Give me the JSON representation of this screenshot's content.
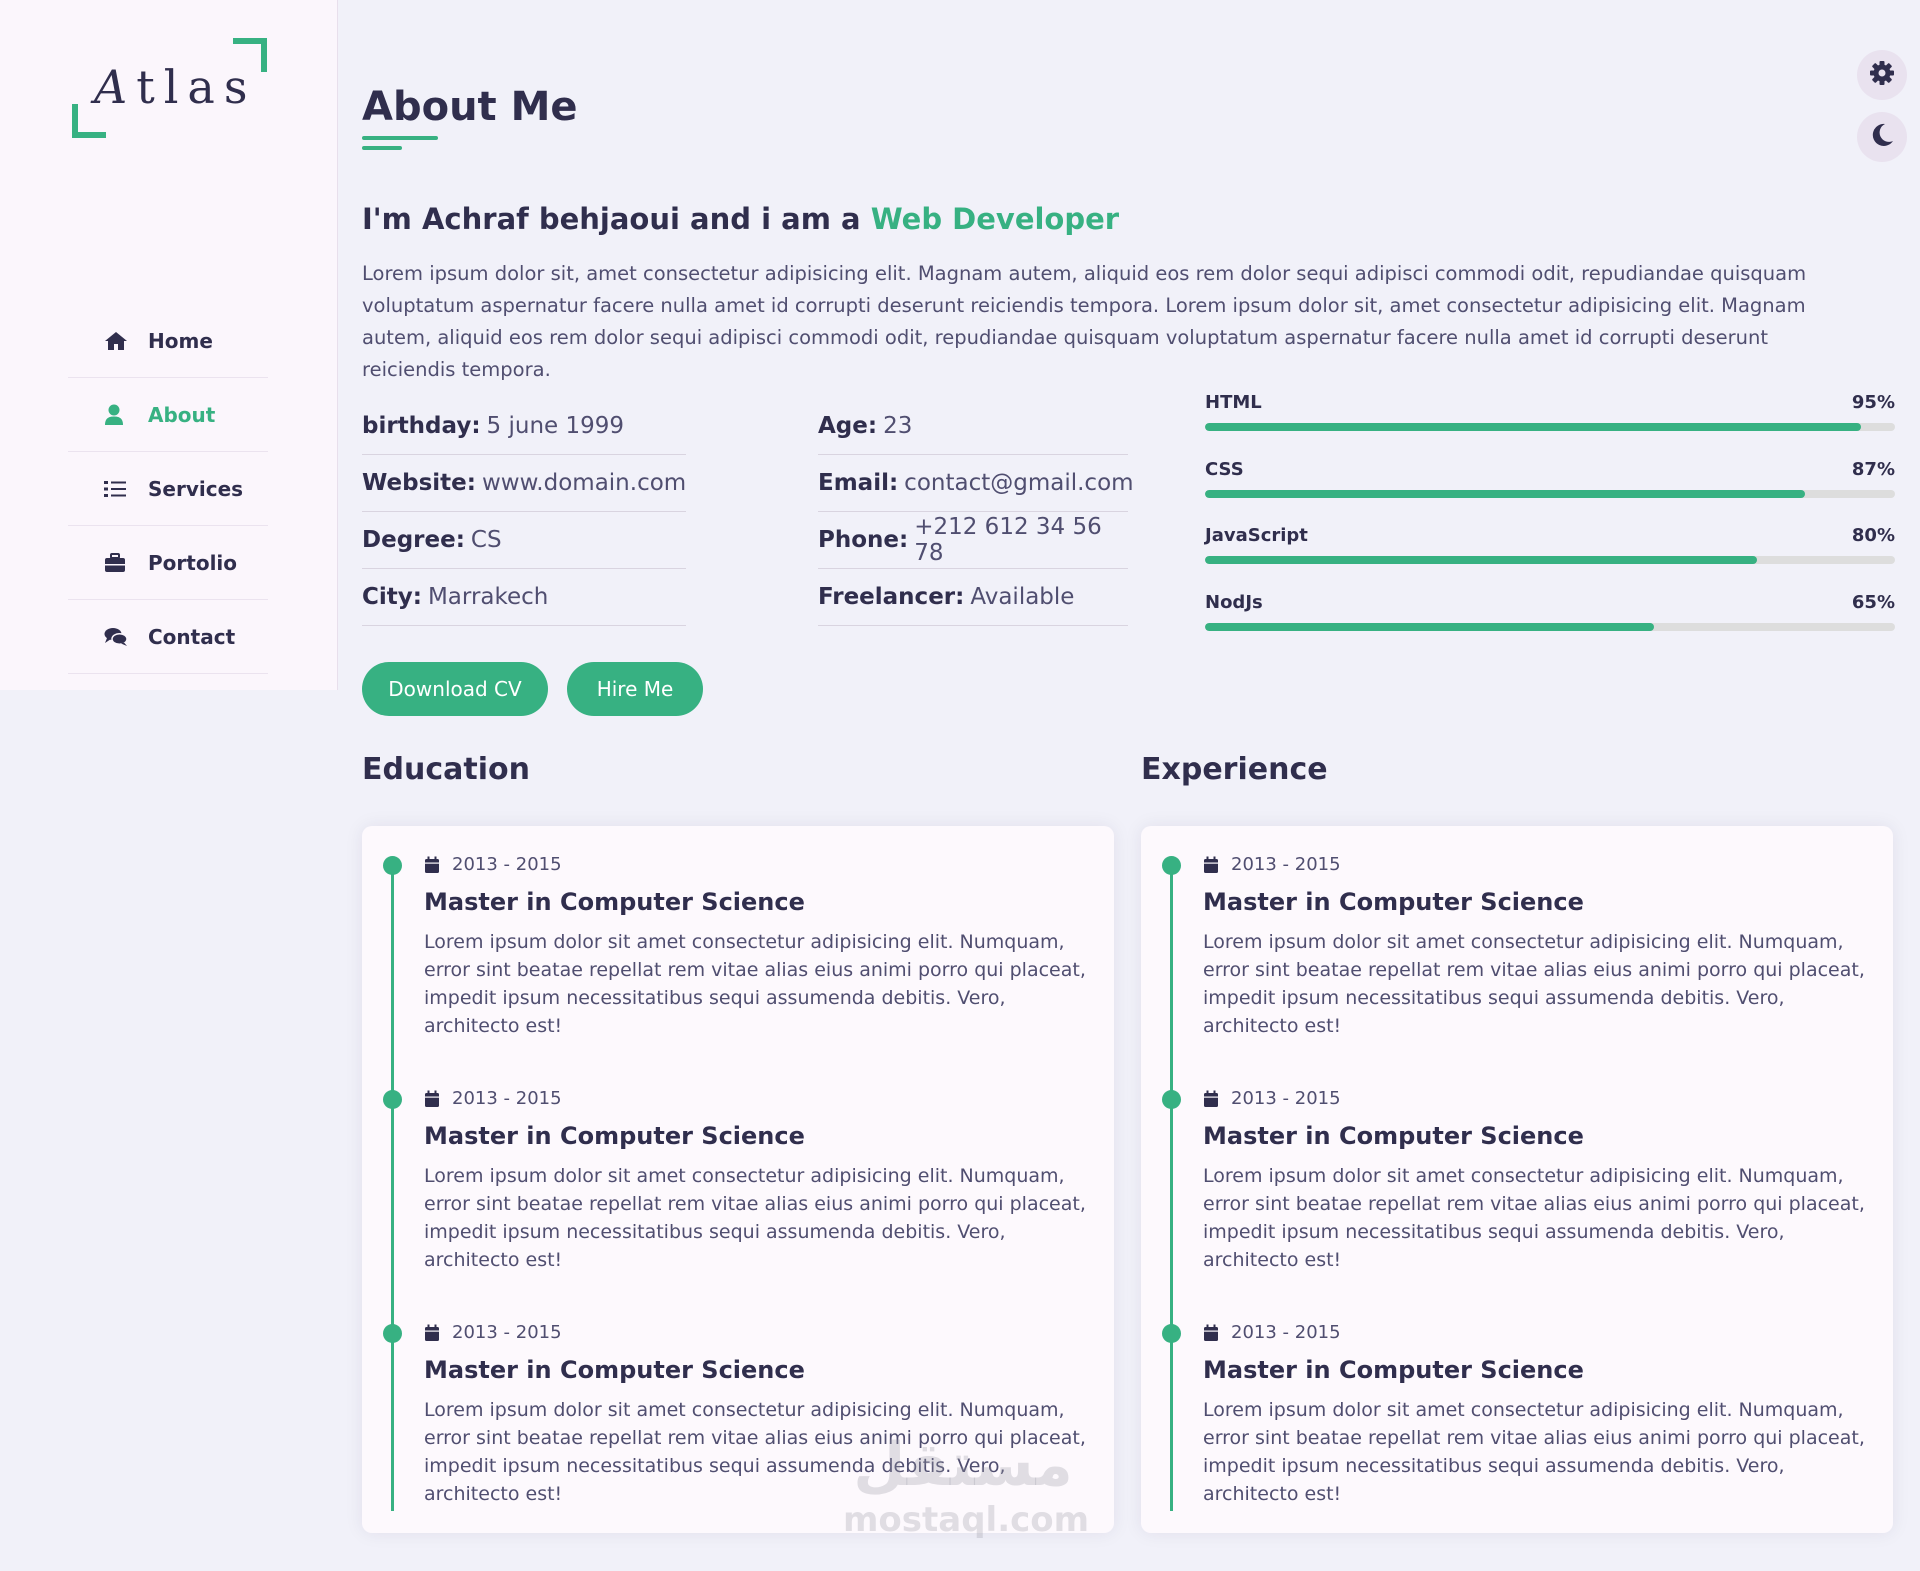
{
  "logo": {
    "first": "A",
    "rest": "tlas"
  },
  "nav": [
    {
      "label": "Home",
      "icon": "home-icon",
      "active": false
    },
    {
      "label": "About",
      "icon": "user-icon",
      "active": true
    },
    {
      "label": "Services",
      "icon": "list-icon",
      "active": false
    },
    {
      "label": "Portolio",
      "icon": "briefcase-icon",
      "active": false
    },
    {
      "label": "Contact",
      "icon": "comments-icon",
      "active": false
    }
  ],
  "about": {
    "title": "About Me",
    "intro_prefix": "I'm Achraf behjaoui and i am a ",
    "intro_role": "Web Developer",
    "description": "Lorem ipsum dolor sit, amet consectetur adipisicing elit. Magnam autem, aliquid eos rem dolor sequi adipisci commodi odit, repudiandae quisquam voluptatum aspernatur facere nulla amet id corrupti deserunt reiciendis tempora. Lorem ipsum dolor sit, amet consectetur adipisicing elit. Magnam autem, aliquid eos rem dolor sequi adipisci commodi odit, repudiandae quisquam voluptatum aspernatur facere nulla amet id corrupti deserunt reiciendis tempora.",
    "info_left": [
      {
        "label": "birthday:",
        "value": "5 june 1999"
      },
      {
        "label": "Website:",
        "value": "www.domain.com"
      },
      {
        "label": "Degree:",
        "value": "CS"
      },
      {
        "label": "City:",
        "value": "Marrakech"
      }
    ],
    "info_right": [
      {
        "label": "Age:",
        "value": "23"
      },
      {
        "label": "Email:",
        "value": "contact@gmail.com"
      },
      {
        "label": "Phone:",
        "value": "+212 612 34 56 78"
      },
      {
        "label": "Freelancer:",
        "value": "Available"
      }
    ],
    "skills": [
      {
        "name": "HTML",
        "percent": 95,
        "label": "95%"
      },
      {
        "name": "CSS",
        "percent": 87,
        "label": "87%"
      },
      {
        "name": "JavaScript",
        "percent": 80,
        "label": "80%"
      },
      {
        "name": "NodJs",
        "percent": 65,
        "label": "65%"
      }
    ],
    "buttons": {
      "download": "Download CV",
      "hire": "Hire Me"
    }
  },
  "education": {
    "title": "Education",
    "items": [
      {
        "date": "2013 - 2015",
        "title": "Master in Computer Science",
        "text": "Lorem ipsum dolor sit amet consectetur adipisicing elit. Numquam, error sint beatae repellat rem vitae alias eius animi porro qui placeat, impedit ipsum necessitatibus sequi assumenda debitis. Vero, architecto est!"
      },
      {
        "date": "2013 - 2015",
        "title": "Master in Computer Science",
        "text": "Lorem ipsum dolor sit amet consectetur adipisicing elit. Numquam, error sint beatae repellat rem vitae alias eius animi porro qui placeat, impedit ipsum necessitatibus sequi assumenda debitis. Vero, architecto est!"
      },
      {
        "date": "2013 - 2015",
        "title": "Master in Computer Science",
        "text": "Lorem ipsum dolor sit amet consectetur adipisicing elit. Numquam, error sint beatae repellat rem vitae alias eius animi porro qui placeat, impedit ipsum necessitatibus sequi assumenda debitis. Vero, architecto est!"
      }
    ]
  },
  "experience": {
    "title": "Experience",
    "items": [
      {
        "date": "2013 - 2015",
        "title": "Master in Computer Science",
        "text": "Lorem ipsum dolor sit amet consectetur adipisicing elit. Numquam, error sint beatae repellat rem vitae alias eius animi porro qui placeat, impedit ipsum necessitatibus sequi assumenda debitis. Vero, architecto est!"
      },
      {
        "date": "2013 - 2015",
        "title": "Master in Computer Science",
        "text": "Lorem ipsum dolor sit amet consectetur adipisicing elit. Numquam, error sint beatae repellat rem vitae alias eius animi porro qui placeat, impedit ipsum necessitatibus sequi assumenda debitis. Vero, architecto est!"
      },
      {
        "date": "2013 - 2015",
        "title": "Master in Computer Science",
        "text": "Lorem ipsum dolor sit amet consectetur adipisicing elit. Numquam, error sint beatae repellat rem vitae alias eius animi porro qui placeat, impedit ipsum necessitatibus sequi assumenda debitis. Vero, architecto est!"
      }
    ]
  },
  "watermark": {
    "arabic": "مستقل",
    "latin": "mostaql.com"
  },
  "colors": {
    "accent": "#37b182",
    "text": "#302e4d",
    "muted": "#504e70",
    "bg": "#f1f1f9",
    "sidebar": "#fbf6fc"
  },
  "toggles": {
    "settings": "gear-icon",
    "theme": "moon-icon"
  }
}
